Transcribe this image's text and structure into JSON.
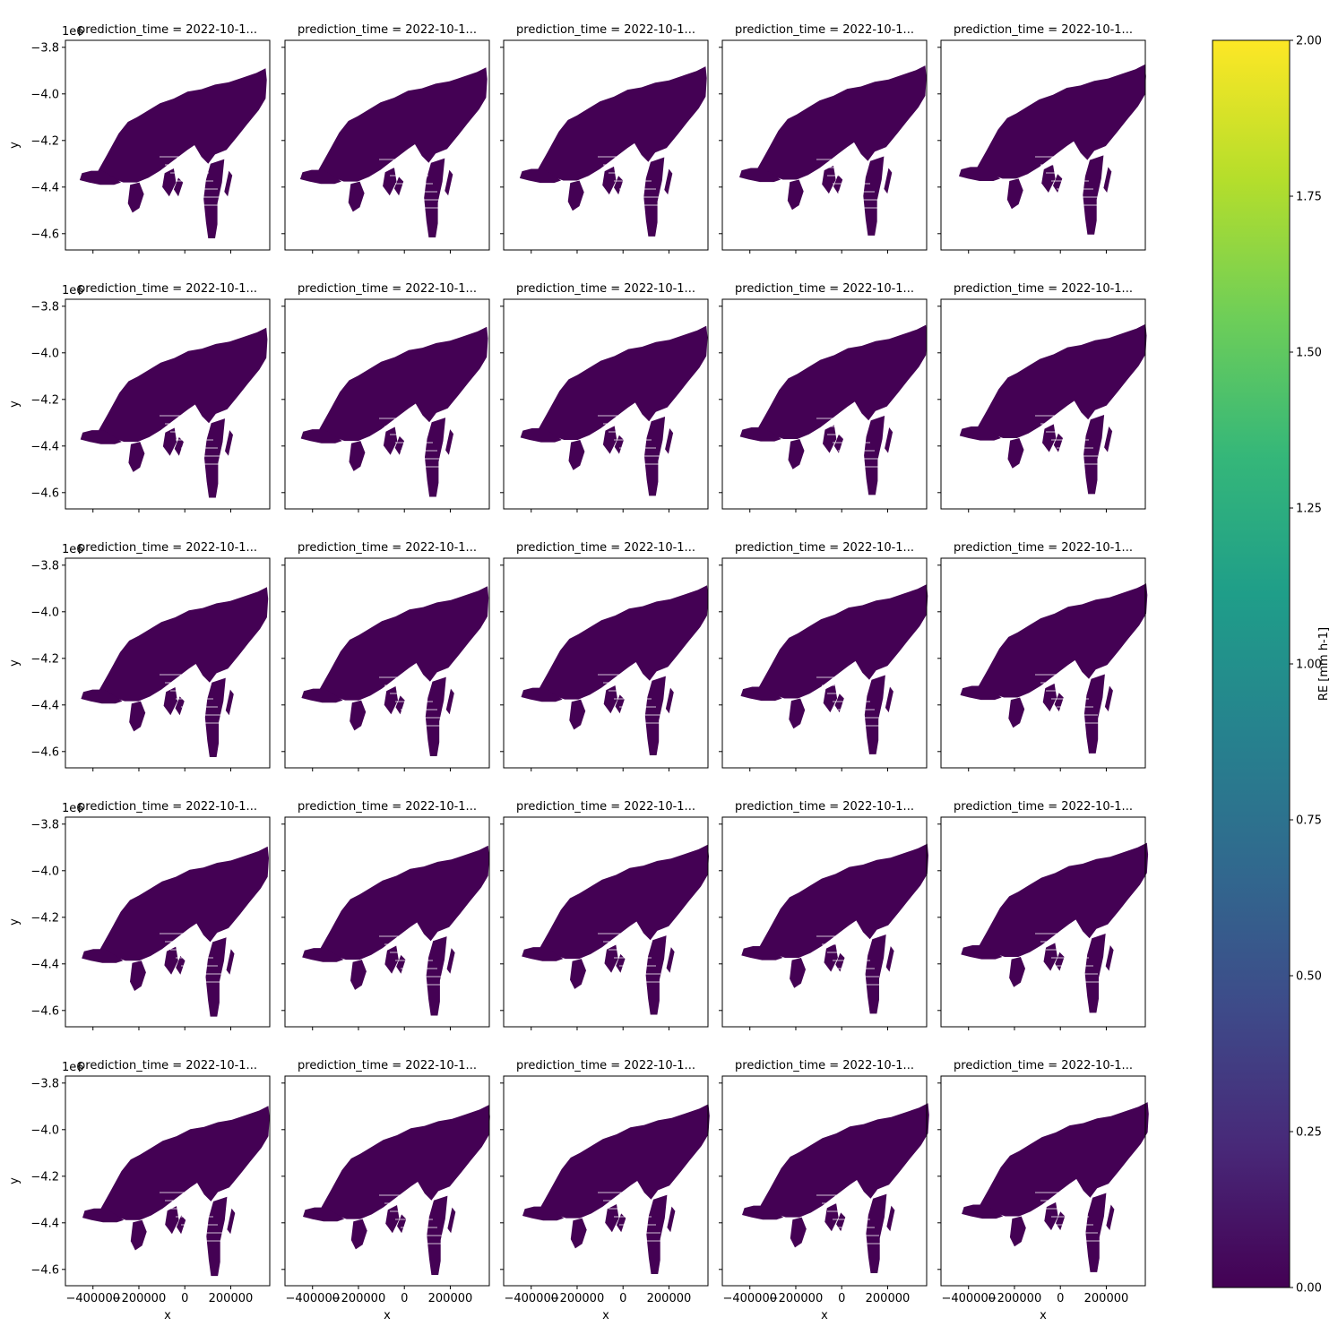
{
  "chart_data": {
    "type": "heatmap",
    "layout": {
      "rows": 5,
      "cols": 5
    },
    "panel_title": "prediction_time = 2022-10-1...",
    "panel_titles": [
      "prediction_time = 2022-10-1...",
      "prediction_time = 2022-10-1...",
      "prediction_time = 2022-10-1...",
      "prediction_time = 2022-10-1...",
      "prediction_time = 2022-10-1...",
      "prediction_time = 2022-10-1...",
      "prediction_time = 2022-10-1...",
      "prediction_time = 2022-10-1...",
      "prediction_time = 2022-10-1...",
      "prediction_time = 2022-10-1...",
      "prediction_time = 2022-10-1...",
      "prediction_time = 2022-10-1...",
      "prediction_time = 2022-10-1...",
      "prediction_time = 2022-10-1...",
      "prediction_time = 2022-10-1...",
      "prediction_time = 2022-10-1...",
      "prediction_time = 2022-10-1...",
      "prediction_time = 2022-10-1...",
      "prediction_time = 2022-10-1...",
      "prediction_time = 2022-10-1...",
      "prediction_time = 2022-10-1...",
      "prediction_time = 2022-10-1...",
      "prediction_time = 2022-10-1...",
      "prediction_time = 2022-10-1...",
      "prediction_time = 2022-10-1..."
    ],
    "xlabel": "x",
    "ylabel": "y",
    "y_offset_label": "1e6",
    "xlim": [
      -520000,
      370000
    ],
    "ylim": [
      -4.67,
      -3.77
    ],
    "xticks": [
      -400000,
      -200000,
      0,
      200000
    ],
    "xtick_labels": [
      "−400000",
      "−200000",
      "0",
      "200000"
    ],
    "yticks": [
      -3.8,
      -4.0,
      -4.2,
      -4.4,
      -4.6
    ],
    "ytick_labels": [
      "−3.8",
      "−4.0",
      "−4.2",
      "−4.4",
      "−4.6"
    ],
    "field_value": 0.0,
    "field_color": "#440154",
    "colorbar": {
      "label": "RE [mm h-1]",
      "range": [
        0,
        2
      ],
      "ticks": [
        0.0,
        0.25,
        0.5,
        0.75,
        1.0,
        1.25,
        1.5,
        1.75,
        2.0
      ],
      "tick_labels": [
        "0.00",
        "0.25",
        "0.50",
        "0.75",
        "1.00",
        "1.25",
        "1.50",
        "1.75",
        "2.00"
      ],
      "colormap": [
        "#440154",
        "#482878",
        "#3e4a89",
        "#31688e",
        "#26828e",
        "#1f9e89",
        "#35b779",
        "#6ece58",
        "#b5de2b",
        "#fde725"
      ]
    },
    "field_shapes": {
      "main": [
        [
          -370000,
          -4.33
        ],
        [
          -330000,
          -4.26
        ],
        [
          -280000,
          -4.17
        ],
        [
          -240000,
          -4.12
        ],
        [
          -200000,
          -4.1
        ],
        [
          -150000,
          -4.07
        ],
        [
          -100000,
          -4.04
        ],
        [
          -40000,
          -4.02
        ],
        [
          20000,
          -3.99
        ],
        [
          80000,
          -3.98
        ],
        [
          140000,
          -3.96
        ],
        [
          200000,
          -3.95
        ],
        [
          260000,
          -3.93
        ],
        [
          320000,
          -3.91
        ],
        [
          360000,
          -3.89
        ],
        [
          365000,
          -3.94
        ],
        [
          360000,
          -4.02
        ],
        [
          330000,
          -4.07
        ],
        [
          280000,
          -4.13
        ],
        [
          240000,
          -4.18
        ],
        [
          190000,
          -4.24
        ],
        [
          140000,
          -4.26
        ],
        [
          110000,
          -4.3
        ],
        [
          80000,
          -4.27
        ],
        [
          50000,
          -4.22
        ],
        [
          20000,
          -4.24
        ],
        [
          -20000,
          -4.27
        ],
        [
          -60000,
          -4.3
        ],
        [
          -100000,
          -4.33
        ],
        [
          -150000,
          -4.36
        ],
        [
          -200000,
          -4.38
        ],
        [
          -260000,
          -4.38
        ],
        [
          -320000,
          -4.36
        ]
      ],
      "west_tail": [
        [
          -440000,
          -4.34
        ],
        [
          -400000,
          -4.33
        ],
        [
          -350000,
          -4.33
        ],
        [
          -300000,
          -4.36
        ],
        [
          -270000,
          -4.38
        ],
        [
          -300000,
          -4.39
        ],
        [
          -360000,
          -4.39
        ],
        [
          -410000,
          -4.38
        ],
        [
          -450000,
          -4.37
        ]
      ],
      "blob_a": [
        [
          -230000,
          -4.39
        ],
        [
          -190000,
          -4.38
        ],
        [
          -170000,
          -4.43
        ],
        [
          -190000,
          -4.49
        ],
        [
          -220000,
          -4.51
        ],
        [
          -240000,
          -4.47
        ]
      ],
      "blob_b": [
        [
          -80000,
          -4.34
        ],
        [
          -40000,
          -4.32
        ],
        [
          -30000,
          -4.38
        ],
        [
          -60000,
          -4.44
        ],
        [
          -90000,
          -4.4
        ]
      ],
      "south_lobe": [
        [
          120000,
          -4.3
        ],
        [
          180000,
          -4.28
        ],
        [
          170000,
          -4.38
        ],
        [
          150000,
          -4.47
        ],
        [
          150000,
          -4.56
        ],
        [
          140000,
          -4.62
        ],
        [
          110000,
          -4.62
        ],
        [
          100000,
          -4.55
        ],
        [
          90000,
          -4.45
        ],
        [
          100000,
          -4.37
        ]
      ],
      "streak_1": [
        [
          -20000,
          -4.36
        ],
        [
          0,
          -4.38
        ],
        [
          -20000,
          -4.44
        ],
        [
          -40000,
          -4.41
        ]
      ],
      "streak_2": [
        [
          200000,
          -4.33
        ],
        [
          215000,
          -4.35
        ],
        [
          195000,
          -4.44
        ],
        [
          180000,
          -4.42
        ]
      ]
    }
  }
}
